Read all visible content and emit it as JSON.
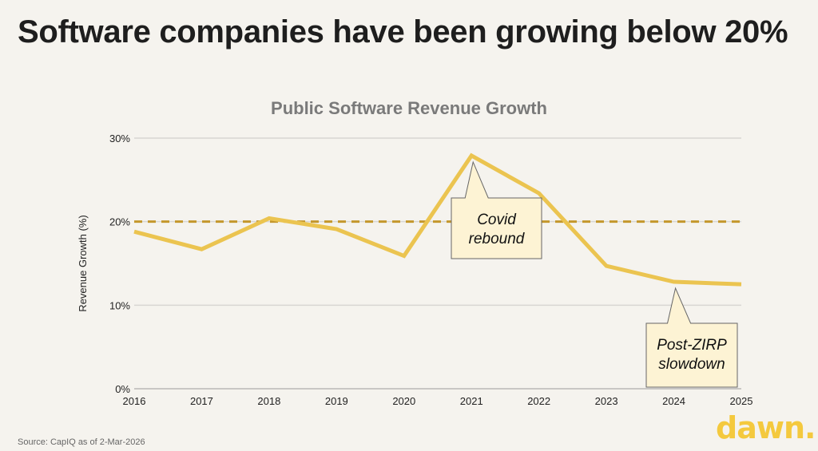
{
  "slide": {
    "title": "Software companies have been growing below 20%",
    "source": "Source: CapIQ as of 2-Mar-2026",
    "logo": "dawn."
  },
  "colors": {
    "line": "#ebc450",
    "threshold": "#c4972c",
    "grid": "#d8d6d2",
    "callout_fill": "#fdf3d4",
    "logo": "#f4c93e"
  },
  "chart_data": {
    "type": "line",
    "title": "Public Software Revenue Growth",
    "xlabel": "",
    "ylabel": "Revenue Growth (%)",
    "x": [
      "2016",
      "2017",
      "2018",
      "2019",
      "2020",
      "2021",
      "2022",
      "2023",
      "2024",
      "2025"
    ],
    "series": [
      {
        "name": "Revenue Growth",
        "values": [
          18.8,
          16.7,
          20.4,
          19.1,
          15.9,
          27.9,
          23.4,
          14.7,
          12.8,
          12.5
        ]
      }
    ],
    "ylim": [
      0,
      30
    ],
    "yticks": [
      0,
      10,
      20,
      30
    ],
    "ytick_labels": [
      "0%",
      "10%",
      "20%",
      "30%"
    ],
    "reference_line": {
      "value": 20,
      "style": "dashed"
    },
    "grid": true,
    "annotations": [
      {
        "text_lines": [
          "Covid",
          "rebound"
        ],
        "x": "2021",
        "y": 27.9
      },
      {
        "text_lines": [
          "Post-ZIRP",
          "slowdown"
        ],
        "x": "2024",
        "y": 12.8
      }
    ]
  }
}
